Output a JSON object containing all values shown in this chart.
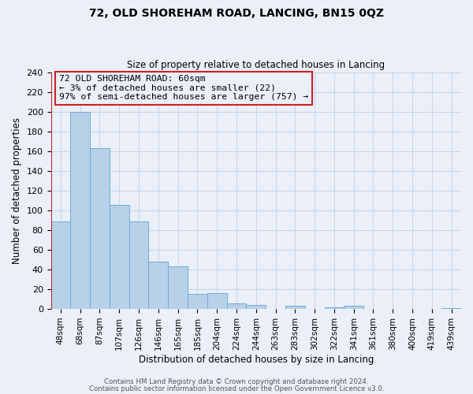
{
  "title": "72, OLD SHOREHAM ROAD, LANCING, BN15 0QZ",
  "subtitle": "Size of property relative to detached houses in Lancing",
  "xlabel": "Distribution of detached houses by size in Lancing",
  "ylabel": "Number of detached properties",
  "bar_labels": [
    "48sqm",
    "68sqm",
    "87sqm",
    "107sqm",
    "126sqm",
    "146sqm",
    "165sqm",
    "185sqm",
    "204sqm",
    "224sqm",
    "244sqm",
    "263sqm",
    "283sqm",
    "302sqm",
    "322sqm",
    "341sqm",
    "361sqm",
    "380sqm",
    "400sqm",
    "419sqm",
    "439sqm"
  ],
  "bar_values": [
    89,
    200,
    163,
    106,
    89,
    48,
    43,
    15,
    16,
    6,
    4,
    0,
    3,
    0,
    2,
    3,
    0,
    0,
    0,
    0,
    1
  ],
  "bar_color": "#b8d0e8",
  "bar_edge_color": "#6baed6",
  "ylim": [
    0,
    240
  ],
  "yticks": [
    0,
    20,
    40,
    60,
    80,
    100,
    120,
    140,
    160,
    180,
    200,
    220,
    240
  ],
  "grid_color": "#c8d4e8",
  "background_color": "#eaeff8",
  "vline_color": "#cc2222",
  "annotation_title": "72 OLD SHOREHAM ROAD: 60sqm",
  "annotation_line1": "← 3% of detached houses are smaller (22)",
  "annotation_line2": "97% of semi-detached houses are larger (757) →",
  "annotation_box_edge": "#cc2222",
  "footer1": "Contains HM Land Registry data © Crown copyright and database right 2024.",
  "footer2": "Contains public sector information licensed under the Open Government Licence v3.0."
}
